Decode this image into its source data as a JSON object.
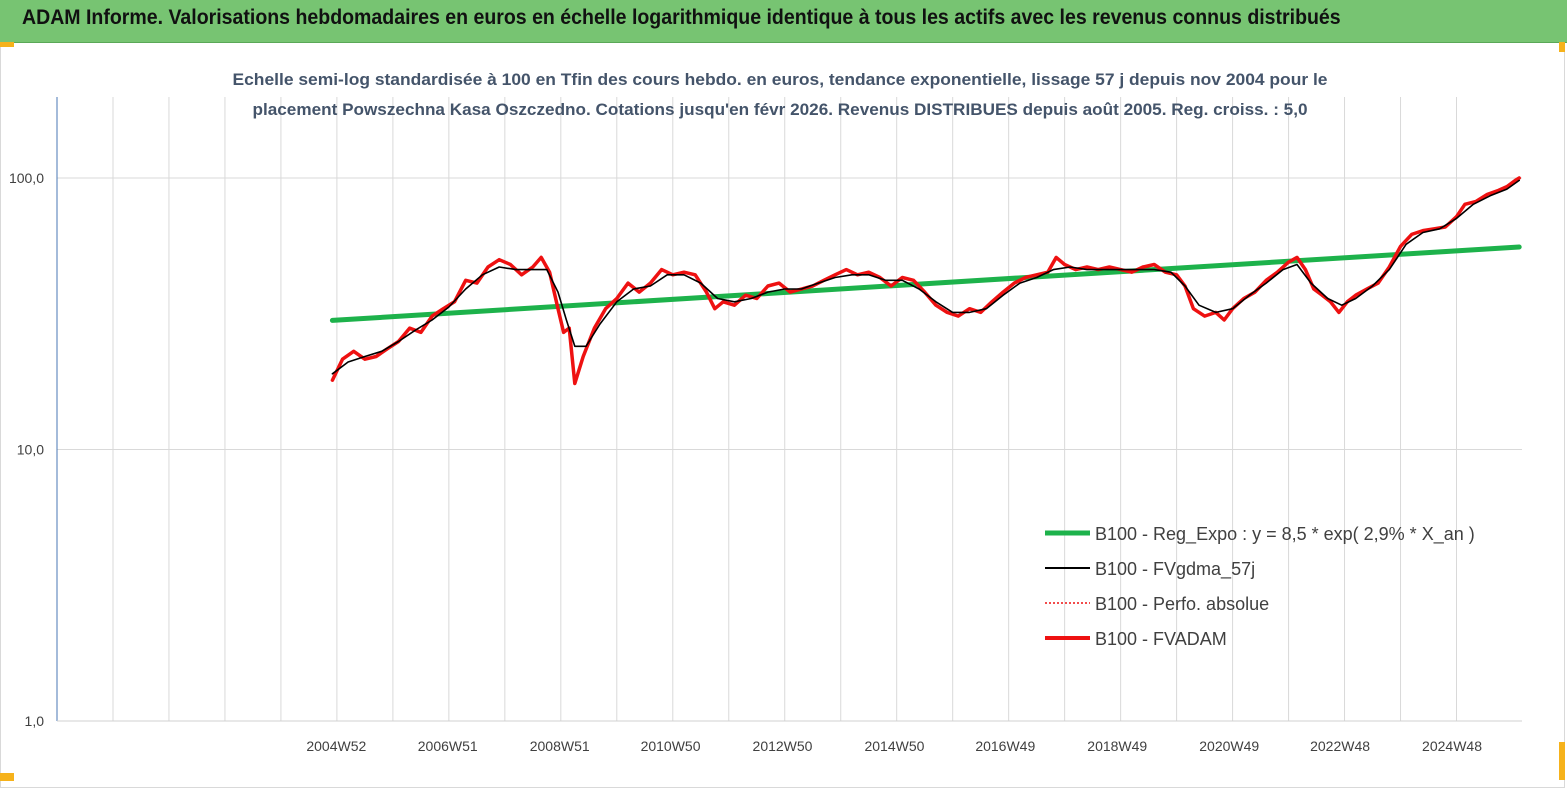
{
  "banner": {
    "title": "ADAM Informe. Valorisations hebdomadaires en euros en échelle logarithmique identique à tous les actifs avec les revenus connus distribués"
  },
  "colors": {
    "banner": "#77c472",
    "corner_marks": "#f6b21b",
    "regression": "#1db24b",
    "fvgdma": "#000000",
    "fvadam": "#ee1111",
    "perfo": "#ee1111",
    "title_text": "#44546a"
  },
  "chart_data": {
    "type": "line",
    "scale": "log",
    "title_line1": "Echelle semi-log standardisée à 100 en Tfin des cours hebdo. en euros, tendance exponentielle, lissage 57 j depuis nov 2004 pour le",
    "title_line2": "placement Powszechna Kasa Oszczedno. Cotations jusqu'en févr 2026. Revenus DISTRIBUES depuis août 2005.  Reg. croiss. : 5,0",
    "x_range": [
      2000.0,
      2026.17
    ],
    "ylim": [
      1,
      200
    ],
    "y_ticks": [
      {
        "value": 100,
        "label": "100,0"
      },
      {
        "value": 10,
        "label": "10,0"
      },
      {
        "value": 1,
        "label": "1,0"
      }
    ],
    "x_ticks": [
      {
        "year": 2004.99,
        "label": "2004W52"
      },
      {
        "year": 2006.98,
        "label": "2006W51"
      },
      {
        "year": 2008.98,
        "label": "2008W51"
      },
      {
        "year": 2010.96,
        "label": "2010W50"
      },
      {
        "year": 2012.96,
        "label": "2012W50"
      },
      {
        "year": 2014.96,
        "label": "2014W50"
      },
      {
        "year": 2016.94,
        "label": "2016W49"
      },
      {
        "year": 2018.94,
        "label": "2018W49"
      },
      {
        "year": 2020.94,
        "label": "2020W49"
      },
      {
        "year": 2022.92,
        "label": "2022W48"
      },
      {
        "year": 2024.92,
        "label": "2024W48"
      }
    ],
    "grid_years": [
      2001,
      2002,
      2003,
      2004,
      2005,
      2006,
      2007,
      2008,
      2009,
      2010,
      2011,
      2012,
      2013,
      2014,
      2015,
      2016,
      2017,
      2018,
      2019,
      2020,
      2021,
      2022,
      2023,
      2024,
      2025
    ],
    "legend": {
      "placement": "bottom-right",
      "entries": [
        {
          "key": "regression",
          "label": "B100 - Reg_Expo : y = 8,5 *  exp( 2,9% *   X_an )",
          "style": "thick"
        },
        {
          "key": "fvgdma",
          "label": "B100 - FVgdma_57j",
          "style": "thin"
        },
        {
          "key": "perfo",
          "label": "B100 - Perfo. absolue",
          "style": "dotted"
        },
        {
          "key": "fvadam",
          "label": "B100 - FVADAM",
          "style": "thick"
        }
      ]
    },
    "series": [
      {
        "key": "fvadam",
        "name": "B100 - FVADAM",
        "points": [
          [
            2004.92,
            18.0
          ],
          [
            2005.1,
            21.5
          ],
          [
            2005.3,
            23.0
          ],
          [
            2005.5,
            21.5
          ],
          [
            2005.7,
            22.0
          ],
          [
            2005.9,
            23.5
          ],
          [
            2006.1,
            25.0
          ],
          [
            2006.3,
            28.0
          ],
          [
            2006.5,
            27.0
          ],
          [
            2006.7,
            31.0
          ],
          [
            2006.9,
            33.0
          ],
          [
            2007.1,
            35.0
          ],
          [
            2007.3,
            42.0
          ],
          [
            2007.5,
            41.0
          ],
          [
            2007.7,
            47.0
          ],
          [
            2007.9,
            50.0
          ],
          [
            2008.1,
            48.0
          ],
          [
            2008.3,
            44.0
          ],
          [
            2008.5,
            47.0
          ],
          [
            2008.65,
            51.0
          ],
          [
            2008.8,
            45.0
          ],
          [
            2008.95,
            33.0
          ],
          [
            2009.05,
            27.0
          ],
          [
            2009.15,
            28.0
          ],
          [
            2009.25,
            17.5
          ],
          [
            2009.4,
            22.0
          ],
          [
            2009.6,
            28.0
          ],
          [
            2009.8,
            33.0
          ],
          [
            2010.0,
            36.0
          ],
          [
            2010.2,
            41.0
          ],
          [
            2010.4,
            38.0
          ],
          [
            2010.6,
            41.0
          ],
          [
            2010.8,
            46.0
          ],
          [
            2011.0,
            44.0
          ],
          [
            2011.2,
            45.0
          ],
          [
            2011.4,
            44.0
          ],
          [
            2011.6,
            38.0
          ],
          [
            2011.75,
            33.0
          ],
          [
            2011.9,
            35.0
          ],
          [
            2012.1,
            34.0
          ],
          [
            2012.3,
            37.0
          ],
          [
            2012.5,
            36.0
          ],
          [
            2012.7,
            40.0
          ],
          [
            2012.9,
            41.0
          ],
          [
            2013.1,
            38.0
          ],
          [
            2013.3,
            39.0
          ],
          [
            2013.5,
            40.0
          ],
          [
            2013.7,
            42.0
          ],
          [
            2013.9,
            44.0
          ],
          [
            2014.1,
            46.0
          ],
          [
            2014.3,
            44.0
          ],
          [
            2014.5,
            45.0
          ],
          [
            2014.7,
            43.0
          ],
          [
            2014.9,
            40.0
          ],
          [
            2015.1,
            43.0
          ],
          [
            2015.3,
            42.0
          ],
          [
            2015.5,
            38.0
          ],
          [
            2015.7,
            34.0
          ],
          [
            2015.9,
            32.0
          ],
          [
            2016.1,
            31.0
          ],
          [
            2016.3,
            33.0
          ],
          [
            2016.5,
            32.0
          ],
          [
            2016.7,
            35.0
          ],
          [
            2016.9,
            38.0
          ],
          [
            2017.1,
            41.0
          ],
          [
            2017.3,
            43.0
          ],
          [
            2017.5,
            44.0
          ],
          [
            2017.7,
            45.0
          ],
          [
            2017.85,
            51.0
          ],
          [
            2018.0,
            48.0
          ],
          [
            2018.2,
            46.0
          ],
          [
            2018.4,
            47.0
          ],
          [
            2018.6,
            46.0
          ],
          [
            2018.8,
            47.0
          ],
          [
            2019.0,
            46.0
          ],
          [
            2019.2,
            45.0
          ],
          [
            2019.4,
            47.0
          ],
          [
            2019.6,
            48.0
          ],
          [
            2019.8,
            45.0
          ],
          [
            2020.0,
            44.0
          ],
          [
            2020.15,
            40.0
          ],
          [
            2020.3,
            33.0
          ],
          [
            2020.5,
            31.0
          ],
          [
            2020.7,
            32.0
          ],
          [
            2020.85,
            30.0
          ],
          [
            2021.0,
            33.0
          ],
          [
            2021.2,
            36.0
          ],
          [
            2021.4,
            38.0
          ],
          [
            2021.6,
            42.0
          ],
          [
            2021.8,
            45.0
          ],
          [
            2022.0,
            49.0
          ],
          [
            2022.15,
            51.0
          ],
          [
            2022.3,
            46.0
          ],
          [
            2022.45,
            39.0
          ],
          [
            2022.6,
            37.0
          ],
          [
            2022.75,
            35.0
          ],
          [
            2022.9,
            32.0
          ],
          [
            2023.05,
            35.0
          ],
          [
            2023.2,
            37.0
          ],
          [
            2023.4,
            39.0
          ],
          [
            2023.6,
            41.0
          ],
          [
            2023.8,
            47.0
          ],
          [
            2024.0,
            56.0
          ],
          [
            2024.2,
            62.0
          ],
          [
            2024.4,
            64.0
          ],
          [
            2024.6,
            65.0
          ],
          [
            2024.8,
            66.0
          ],
          [
            2025.0,
            72.0
          ],
          [
            2025.15,
            80.0
          ],
          [
            2025.35,
            82.0
          ],
          [
            2025.55,
            87.0
          ],
          [
            2025.75,
            90.0
          ],
          [
            2025.9,
            93.0
          ],
          [
            2026.05,
            98.0
          ],
          [
            2026.12,
            100.0
          ]
        ]
      },
      {
        "key": "fvgdma",
        "name": "B100 - FVgdma_57j",
        "points": [
          [
            2004.92,
            19.0
          ],
          [
            2005.2,
            21.0
          ],
          [
            2005.5,
            22.0
          ],
          [
            2005.8,
            23.0
          ],
          [
            2006.1,
            25.0
          ],
          [
            2006.4,
            27.5
          ],
          [
            2006.7,
            30.0
          ],
          [
            2007.0,
            33.5
          ],
          [
            2007.3,
            39.0
          ],
          [
            2007.6,
            44.0
          ],
          [
            2007.9,
            47.0
          ],
          [
            2008.2,
            46.0
          ],
          [
            2008.5,
            46.0
          ],
          [
            2008.75,
            46.0
          ],
          [
            2008.95,
            38.0
          ],
          [
            2009.1,
            30.0
          ],
          [
            2009.25,
            24.0
          ],
          [
            2009.45,
            24.0
          ],
          [
            2009.7,
            29.0
          ],
          [
            2010.0,
            35.0
          ],
          [
            2010.3,
            39.0
          ],
          [
            2010.6,
            40.0
          ],
          [
            2010.9,
            44.0
          ],
          [
            2011.2,
            44.0
          ],
          [
            2011.5,
            41.0
          ],
          [
            2011.8,
            36.0
          ],
          [
            2012.1,
            35.0
          ],
          [
            2012.4,
            36.0
          ],
          [
            2012.7,
            38.0
          ],
          [
            2013.0,
            39.0
          ],
          [
            2013.3,
            39.0
          ],
          [
            2013.6,
            41.0
          ],
          [
            2013.9,
            43.0
          ],
          [
            2014.2,
            44.0
          ],
          [
            2014.5,
            44.0
          ],
          [
            2014.8,
            42.0
          ],
          [
            2015.1,
            42.0
          ],
          [
            2015.4,
            39.0
          ],
          [
            2015.7,
            35.0
          ],
          [
            2016.0,
            32.0
          ],
          [
            2016.3,
            32.0
          ],
          [
            2016.6,
            33.0
          ],
          [
            2016.9,
            37.0
          ],
          [
            2017.2,
            41.0
          ],
          [
            2017.5,
            43.0
          ],
          [
            2017.8,
            46.0
          ],
          [
            2018.1,
            47.0
          ],
          [
            2018.4,
            46.0
          ],
          [
            2018.7,
            46.0
          ],
          [
            2019.0,
            46.0
          ],
          [
            2019.3,
            46.0
          ],
          [
            2019.6,
            46.0
          ],
          [
            2019.9,
            45.0
          ],
          [
            2020.15,
            40.0
          ],
          [
            2020.4,
            34.0
          ],
          [
            2020.7,
            32.0
          ],
          [
            2021.0,
            33.0
          ],
          [
            2021.3,
            37.0
          ],
          [
            2021.6,
            41.0
          ],
          [
            2021.9,
            46.0
          ],
          [
            2022.15,
            48.0
          ],
          [
            2022.4,
            41.0
          ],
          [
            2022.7,
            36.0
          ],
          [
            2022.95,
            34.0
          ],
          [
            2023.2,
            36.0
          ],
          [
            2023.5,
            40.0
          ],
          [
            2023.8,
            46.0
          ],
          [
            2024.1,
            57.0
          ],
          [
            2024.4,
            63.0
          ],
          [
            2024.7,
            65.0
          ],
          [
            2025.0,
            71.0
          ],
          [
            2025.3,
            80.0
          ],
          [
            2025.6,
            86.0
          ],
          [
            2025.9,
            91.0
          ],
          [
            2026.12,
            98.0
          ]
        ]
      },
      {
        "key": "regression",
        "name": "B100 - Reg_Expo : y = 8,5 *  exp( 2,9% *   X_an )",
        "points": [
          [
            2004.92,
            29.9
          ],
          [
            2026.12,
            55.7
          ]
        ]
      }
    ]
  }
}
